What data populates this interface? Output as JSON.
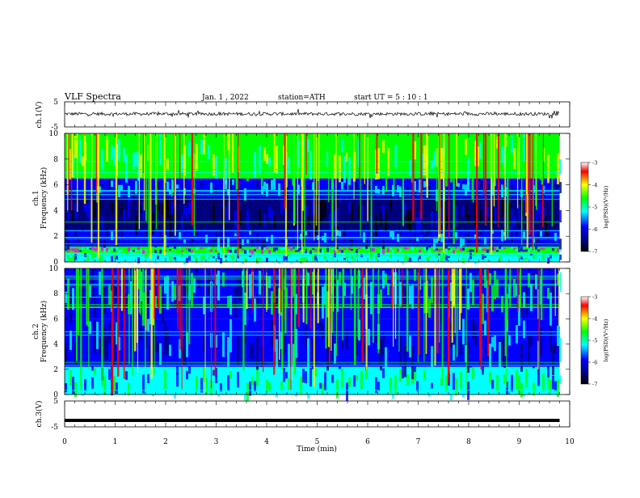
{
  "header": {
    "title": "VLF  Spectra",
    "date": "Jan.  1  , 2022",
    "station": "station=ATH",
    "start": "start  UT  =    5  : 10 : 1"
  },
  "chart_data": [
    {
      "type": "line",
      "panel": "ch1-waveform",
      "ylabel": "ch.1(V)",
      "ylim": [
        -5,
        5
      ],
      "yticks": [
        "5",
        "-5"
      ],
      "x_range_min": [
        0,
        9.8
      ],
      "baseline_v": 0.2,
      "amplitude_typical_v": 0.8,
      "spike_max_v": 1.5
    },
    {
      "type": "heatmap",
      "panel": "ch1-spectrogram",
      "ylabel": "ch.1\nFrequency  (kHz)",
      "ylabel_line1": "ch.1",
      "ylabel_line2": "Frequency  (kHz)",
      "ylim": [
        0,
        10
      ],
      "yticks": [
        "0",
        "2",
        "4",
        "6",
        "8",
        "10"
      ],
      "x_range_min": [
        0,
        9.8
      ],
      "bands_khz": [
        {
          "from": 0,
          "to": 0.7,
          "level": "cyan"
        },
        {
          "from": 0.7,
          "to": 1.2,
          "level": "green-magenta"
        },
        {
          "from": 1.2,
          "to": 2.5,
          "level": "blue"
        },
        {
          "from": 2.5,
          "to": 5.0,
          "level": "dark-blue"
        },
        {
          "from": 5.0,
          "to": 6.5,
          "level": "blue-cyan"
        },
        {
          "from": 6.5,
          "to": 10,
          "level": "green-yellow"
        }
      ],
      "colorbar": {
        "label": "log(PSD)(V²/Hz)",
        "ticks": [
          "-3",
          "-4",
          "-5",
          "-6",
          "-7"
        ],
        "range": [
          -7,
          -3
        ]
      }
    },
    {
      "type": "heatmap",
      "panel": "ch2-spectrogram",
      "ylabel_line1": "ch.2",
      "ylabel_line2": "Frequency  (kHz)",
      "ylim": [
        0,
        10
      ],
      "yticks": [
        "0",
        "2",
        "4",
        "6",
        "8",
        "10"
      ],
      "x_range_min": [
        0,
        9.8
      ],
      "bands_khz": [
        {
          "from": 0,
          "to": 2.2,
          "level": "cyan-green"
        },
        {
          "from": 2.2,
          "to": 6.0,
          "level": "blue"
        },
        {
          "from": 6.0,
          "to": 10,
          "level": "mixed-blue-cyan"
        }
      ],
      "colorbar": {
        "label": "log(PSD)(V²/Hz)",
        "ticks": [
          "-3",
          "-4",
          "-5",
          "-6",
          "-7"
        ],
        "range": [
          -7,
          -3
        ]
      }
    },
    {
      "type": "line",
      "panel": "ch3-waveform",
      "ylabel": "ch.3(V)",
      "ylim": [
        -5,
        5
      ],
      "yticks": [
        "5",
        "-5"
      ],
      "x_range_min": [
        0,
        9.8
      ],
      "level_v": -2.5
    }
  ],
  "xaxis": {
    "label": "Time  (min)",
    "ticks": [
      "0",
      "1",
      "2",
      "3",
      "4",
      "5",
      "6",
      "7",
      "8",
      "9",
      "10"
    ],
    "xlim": [
      0,
      10
    ]
  },
  "colors": {
    "dark_blue": "#00007f",
    "blue": "#0000ff",
    "cyan": "#00ffff",
    "green": "#00ff00",
    "yellow": "#ffff00",
    "red": "#ff0000",
    "magenta": "#ff00ff",
    "black": "#000000"
  }
}
